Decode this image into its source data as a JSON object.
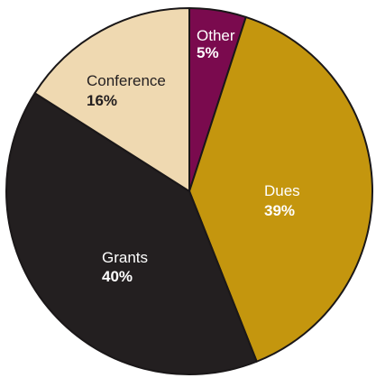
{
  "chart_data": {
    "type": "pie",
    "title": "",
    "slices": [
      {
        "label": "Other",
        "value": 5,
        "value_label": "5%",
        "color": "#7a0a4e",
        "text_color": "#ffffff"
      },
      {
        "label": "Dues",
        "value": 39,
        "value_label": "39%",
        "color": "#c4960e",
        "text_color": "#ffffff"
      },
      {
        "label": "Grants",
        "value": 40,
        "value_label": "40%",
        "color": "#231f20",
        "text_color": "#ffffff"
      },
      {
        "label": "Conference",
        "value": 16,
        "value_label": "16%",
        "color": "#efd9b1",
        "text_color": "#231f20"
      }
    ],
    "start_angle": "12 o'clock",
    "direction": "clockwise",
    "legend": "none"
  }
}
